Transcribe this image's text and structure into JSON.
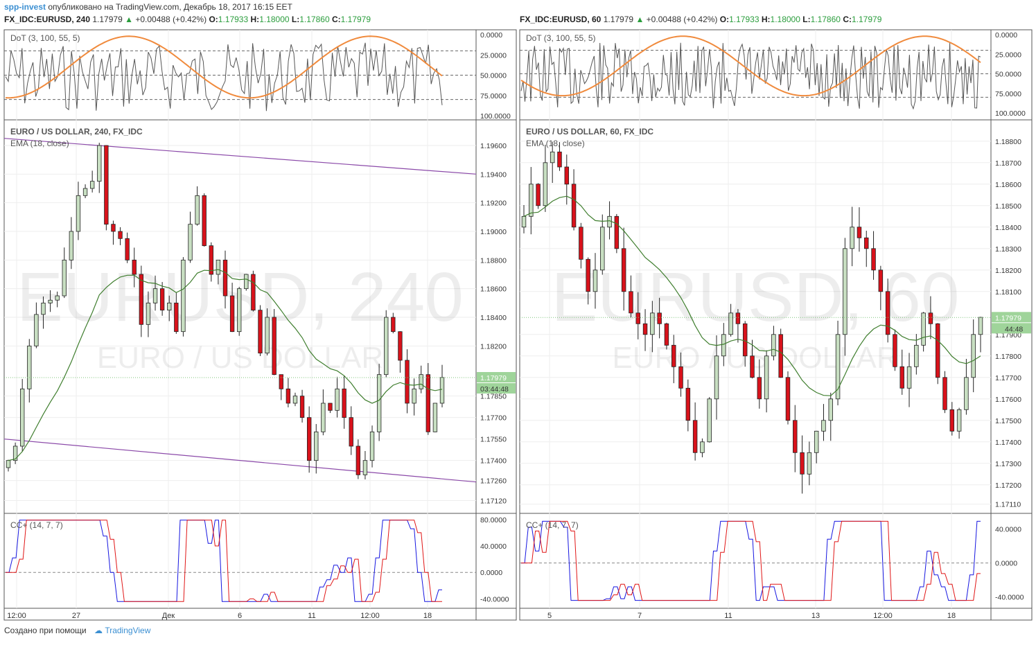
{
  "header": {
    "author": "spp-invest",
    "published_text": "опубликовано на TradingView.com, Декабрь 18, 2017 16:15 EET"
  },
  "footer": {
    "created_with": "Создано при помощи",
    "brand": "TradingView"
  },
  "colors": {
    "up_candle": "#c8dfc2",
    "down_candle": "#d8121b",
    "ema": "#3f7e2e",
    "channel": "#8a48a8",
    "dot_fast": "#555555",
    "dot_slow": "#f08a3c",
    "dot_band": "#e5c8e8",
    "cc_fast": "#1515e0",
    "cc_slow": "#e01515",
    "price_tag": "#9fd49a"
  },
  "left": {
    "symbol": "FX_IDC:EURUSD, 240",
    "last": "1.17979",
    "change": "+0.00488 (+0.42%)",
    "O_label": "O:",
    "O": "1.17933",
    "H_label": "H:",
    "H": "1.18000",
    "L_label": "L:",
    "L": "1.17860",
    "C_label": "C:",
    "C": "1.17979",
    "watermark_big": "EURUSD, 240",
    "watermark_small": "EURO / US DOLLAR",
    "dot_label": "DoT (3, 100, 55, 5)",
    "dot_axis": [
      "100.0000",
      "75.0000",
      "50.0000",
      "25.0000",
      "0.0000"
    ],
    "price_title": "EURO / US DOLLAR, 240, FX_IDC",
    "ema_label": "EMA (18, close)",
    "price_axis": [
      "1.19600",
      "1.19400",
      "1.19200",
      "1.19000",
      "1.18800",
      "1.18600",
      "1.18400",
      "1.18200",
      "1.17850",
      "1.17700",
      "1.17550",
      "1.17400",
      "1.17260",
      "1.17120"
    ],
    "price_tag": "1.17979",
    "timer_tag": "03:44:48",
    "cc_label": "CC+ (14, 7, 7)",
    "cc_axis": [
      "80.0000",
      "40.0000",
      "0.0000",
      "-40.0000"
    ],
    "x_labels": [
      "12:00",
      "27",
      "Дек",
      "6",
      "11",
      "12:00",
      "18"
    ]
  },
  "right": {
    "symbol": "FX_IDC:EURUSD, 60",
    "last": "1.17979",
    "change": "+0.00488 (+0.42%)",
    "O_label": "O:",
    "O": "1.17933",
    "H_label": "H:",
    "H": "1.18000",
    "L_label": "L:",
    "L": "1.17860",
    "C_label": "C:",
    "C": "1.17979",
    "watermark_big": "EURUSD, 60",
    "watermark_small": "EURO / US DOLLAR",
    "dot_label": "DoT (3, 100, 55, 5)",
    "dot_axis": [
      "100.0000",
      "75.0000",
      "50.0000",
      "25.0000",
      "0.0000"
    ],
    "price_title": "EURO / US DOLLAR, 60, FX_IDC",
    "ema_label": "EMA (18, close)",
    "price_axis": [
      "1.18800",
      "1.18700",
      "1.18600",
      "1.18500",
      "1.18400",
      "1.18300",
      "1.18200",
      "1.18100",
      "1.17900",
      "1.17800",
      "1.17700",
      "1.17600",
      "1.17500",
      "1.17400",
      "1.17300",
      "1.17200",
      "1.17110"
    ],
    "price_tag": "1.17979",
    "timer_tag": "44:48",
    "cc_label": "CC+ (14, 7, 7)",
    "cc_axis": [
      "40.0000",
      "0.0000",
      "-40.0000"
    ],
    "x_labels": [
      "5",
      "7",
      "11",
      "13",
      "12:00",
      "18"
    ]
  },
  "chart_data": [
    {
      "type": "candlestick",
      "title": "EURO / US DOLLAR, 240, FX_IDC",
      "timeframe": "240",
      "x_ticks": [
        "12:00",
        "27",
        "Дек",
        "6",
        "11",
        "12:00",
        "18"
      ],
      "ylim": [
        1.1705,
        1.1975
      ],
      "close_series": [
        1.174,
        1.175,
        1.179,
        1.182,
        1.1842,
        1.185,
        1.1852,
        1.1855,
        1.188,
        1.19,
        1.1925,
        1.193,
        1.1935,
        1.196,
        1.1905,
        1.19,
        1.1895,
        1.188,
        1.187,
        1.1835,
        1.185,
        1.186,
        1.1845,
        1.185,
        1.183,
        1.188,
        1.1905,
        1.1925,
        1.189,
        1.187,
        1.188,
        1.1855,
        1.183,
        1.186,
        1.187,
        1.1845,
        1.1815,
        1.184,
        1.18,
        1.179,
        1.178,
        1.1785,
        1.177,
        1.174,
        1.176,
        1.178,
        1.1775,
        1.179,
        1.177,
        1.175,
        1.173,
        1.174,
        1.176,
        1.18,
        1.184,
        1.183,
        1.181,
        1.178,
        1.179,
        1.18,
        1.176,
        1.178,
        1.1798
      ],
      "ema": {
        "name": "EMA (18, close)"
      },
      "indicators": {
        "dot": {
          "name": "DoT (3, 100, 55, 5)",
          "ylim": [
            0,
            100
          ],
          "band": [
            20,
            80
          ]
        },
        "cc": {
          "name": "CC+ (14, 7, 7)",
          "ylim": [
            -50,
            85
          ]
        }
      },
      "last_price": 1.17979
    },
    {
      "type": "candlestick",
      "title": "EURO / US DOLLAR, 60, FX_IDC",
      "timeframe": "60",
      "x_ticks": [
        "5",
        "7",
        "11",
        "13",
        "12:00",
        "18"
      ],
      "ylim": [
        1.1708,
        1.1888
      ],
      "close_series": [
        1.1845,
        1.186,
        1.185,
        1.187,
        1.1875,
        1.1868,
        1.186,
        1.184,
        1.1825,
        1.181,
        1.182,
        1.184,
        1.1845,
        1.183,
        1.181,
        1.18,
        1.1795,
        1.179,
        1.18,
        1.1795,
        1.1785,
        1.1775,
        1.1765,
        1.175,
        1.1735,
        1.174,
        1.176,
        1.178,
        1.179,
        1.18,
        1.1795,
        1.178,
        1.177,
        1.176,
        1.178,
        1.179,
        1.177,
        1.175,
        1.1735,
        1.1725,
        1.1735,
        1.1745,
        1.175,
        1.176,
        1.179,
        1.183,
        1.184,
        1.1835,
        1.183,
        1.182,
        1.181,
        1.179,
        1.1775,
        1.1765,
        1.1775,
        1.1785,
        1.18,
        1.1795,
        1.177,
        1.1755,
        1.1745,
        1.1755,
        1.177,
        1.179,
        1.1798
      ],
      "ema": {
        "name": "EMA (18, close)"
      },
      "indicators": {
        "dot": {
          "name": "DoT (3, 100, 55, 5)",
          "ylim": [
            0,
            100
          ],
          "band": [
            20,
            80
          ]
        },
        "cc": {
          "name": "CC+ (14, 7, 7)",
          "ylim": [
            -50,
            55
          ]
        }
      },
      "last_price": 1.17979
    }
  ]
}
